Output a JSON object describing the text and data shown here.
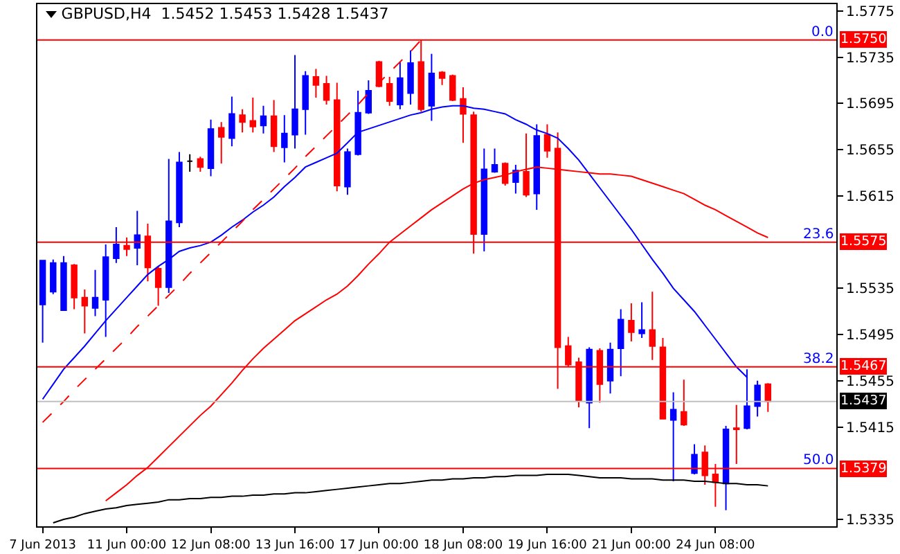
{
  "chart_data": {
    "type": "candlestick",
    "title": "GBPUSD,H4  1.5452 1.5453 1.5428 1.5437",
    "categories": [
      "7 Jun 2013",
      null,
      null,
      null,
      null,
      null,
      null,
      null,
      "11 Jun 00:00",
      null,
      null,
      null,
      null,
      null,
      null,
      null,
      "12 Jun 08:00",
      null,
      null,
      null,
      null,
      null,
      null,
      null,
      "13 Jun 16:00",
      null,
      null,
      null,
      null,
      null,
      null,
      null,
      "17 Jun 00:00",
      null,
      null,
      null,
      null,
      null,
      null,
      null,
      "18 Jun 08:00",
      null,
      null,
      null,
      null,
      null,
      null,
      null,
      "19 Jun 16:00",
      null,
      null,
      null,
      null,
      null,
      null,
      null,
      "21 Jun 00:00",
      null,
      null,
      null,
      null,
      null,
      null,
      null,
      "24 Jun 08:00",
      null,
      null,
      null,
      null,
      null,
      null,
      null,
      null,
      null,
      null,
      null
    ],
    "ohlc": [
      [
        1.5521,
        1.5559,
        1.5488,
        1.5559
      ],
      [
        1.5532,
        1.556,
        1.553,
        1.5557
      ],
      [
        1.5516,
        1.5563,
        1.5516,
        1.5557
      ],
      [
        1.5555,
        1.5556,
        1.5517,
        1.5527
      ],
      [
        1.5527,
        1.5534,
        1.5496,
        1.552
      ],
      [
        1.5518,
        1.5551,
        1.5511,
        1.5527
      ],
      [
        1.5525,
        1.5573,
        1.5493,
        1.5562
      ],
      [
        1.5561,
        1.5588,
        1.5557,
        1.5573
      ],
      [
        1.5572,
        1.5579,
        1.5563,
        1.5569
      ],
      [
        1.557,
        1.5602,
        1.5555,
        1.5581
      ],
      [
        1.558,
        1.5591,
        1.5541,
        1.5553
      ],
      [
        1.5552,
        1.5554,
        1.552,
        1.5536
      ],
      [
        1.5536,
        1.5647,
        1.5531,
        1.5593
      ],
      [
        1.5592,
        1.5653,
        1.5588,
        1.5644
      ],
      [
        1.5645,
        1.5651,
        1.5636,
        1.5645
      ],
      [
        1.5647,
        1.5649,
        1.5636,
        1.564
      ],
      [
        1.5639,
        1.5681,
        1.5632,
        1.5673
      ],
      [
        1.5674,
        1.5679,
        1.5643,
        1.5666
      ],
      [
        1.5665,
        1.5701,
        1.5658,
        1.5686
      ],
      [
        1.5685,
        1.569,
        1.567,
        1.5679
      ],
      [
        1.568,
        1.57,
        1.567,
        1.5675
      ],
      [
        1.5676,
        1.5693,
        1.5669,
        1.5684
      ],
      [
        1.5684,
        1.5698,
        1.5653,
        1.5658
      ],
      [
        1.5657,
        1.5685,
        1.5644,
        1.5669
      ],
      [
        1.5668,
        1.5737,
        1.5656,
        1.569
      ],
      [
        1.569,
        1.5723,
        1.5668,
        1.5719
      ],
      [
        1.5718,
        1.5725,
        1.57,
        1.5711
      ],
      [
        1.5712,
        1.5719,
        1.5694,
        1.5698
      ],
      [
        1.5698,
        1.5713,
        1.5619,
        1.5624
      ],
      [
        1.5623,
        1.5656,
        1.5616,
        1.5653
      ],
      [
        1.5651,
        1.5706,
        1.565,
        1.5687
      ],
      [
        1.5687,
        1.5715,
        1.5686,
        1.5706
      ],
      [
        1.5731,
        1.5732,
        1.5709,
        1.571
      ],
      [
        1.5712,
        1.5718,
        1.5693,
        1.5697
      ],
      [
        1.5694,
        1.5731,
        1.569,
        1.5717
      ],
      [
        1.5704,
        1.5741,
        1.5694,
        1.573
      ],
      [
        1.5731,
        1.575,
        1.5688,
        1.569
      ],
      [
        1.5693,
        1.5738,
        1.568,
        1.5721
      ],
      [
        1.5722,
        1.5723,
        1.5711,
        1.5717
      ],
      [
        1.5719,
        1.572,
        1.5697,
        1.5698
      ],
      [
        1.5699,
        1.5709,
        1.5661,
        1.5686
      ],
      [
        1.5685,
        1.5688,
        1.5565,
        1.5582
      ],
      [
        1.5582,
        1.5656,
        1.5567,
        1.5638
      ],
      [
        1.5636,
        1.5656,
        1.5635,
        1.5642
      ],
      [
        1.5643,
        1.5644,
        1.5624,
        1.5626
      ],
      [
        1.5627,
        1.5642,
        1.5617,
        1.5637
      ],
      [
        1.5636,
        1.5669,
        1.5614,
        1.5616
      ],
      [
        1.5617,
        1.5677,
        1.5603,
        1.5667
      ],
      [
        1.5668,
        1.5677,
        1.5648,
        1.5654
      ],
      [
        1.5656,
        1.567,
        1.5448,
        1.5484
      ],
      [
        1.5485,
        1.5493,
        1.5467,
        1.5469
      ],
      [
        1.5471,
        1.5475,
        1.5432,
        1.5438
      ],
      [
        1.5436,
        1.5484,
        1.5414,
        1.5482
      ],
      [
        1.5481,
        1.5483,
        1.5436,
        1.5452
      ],
      [
        1.5455,
        1.5488,
        1.5444,
        1.5482
      ],
      [
        1.5483,
        1.5517,
        1.5459,
        1.5508
      ],
      [
        1.5507,
        1.5522,
        1.5489,
        1.5497
      ],
      [
        1.5496,
        1.5523,
        1.5492,
        1.5499
      ],
      [
        1.5499,
        1.5532,
        1.5473,
        1.5485
      ],
      [
        1.5484,
        1.5492,
        1.5422,
        1.5422
      ],
      [
        1.5421,
        1.5445,
        1.5368,
        1.543
      ],
      [
        1.5428,
        1.5456,
        1.5416,
        1.5417
      ],
      [
        1.5375,
        1.54,
        1.5374,
        1.5391
      ],
      [
        1.5393,
        1.5399,
        1.5365,
        1.5373
      ],
      [
        1.5374,
        1.5383,
        1.5346,
        1.5367
      ],
      [
        1.5366,
        1.5416,
        1.5343,
        1.5413
      ],
      [
        1.5414,
        1.5434,
        1.5383,
        1.5413
      ],
      [
        1.5414,
        1.5465,
        1.5413,
        1.5433
      ],
      [
        1.5433,
        1.5455,
        1.5424,
        1.5451
      ],
      [
        1.5452,
        1.5453,
        1.5428,
        1.5437
      ],
      null,
      null,
      null,
      null,
      null,
      null
    ],
    "colors": [
      "#0000ff",
      "#0000ff",
      "#0000ff",
      "#ff0000",
      "#ff0000",
      "#0000ff",
      "#0000ff",
      "#0000ff",
      "#ff0000",
      "#0000ff",
      "#ff0000",
      "#ff0000",
      "#0000ff",
      "#0000ff",
      "#000000",
      "#ff0000",
      "#0000ff",
      "#ff0000",
      "#0000ff",
      "#ff0000",
      "#ff0000",
      "#0000ff",
      "#ff0000",
      "#0000ff",
      "#0000ff",
      "#0000ff",
      "#ff0000",
      "#ff0000",
      "#ff0000",
      "#0000ff",
      "#0000ff",
      "#0000ff",
      "#ff0000",
      "#ff0000",
      "#0000ff",
      "#0000ff",
      "#ff0000",
      "#0000ff",
      "#ff0000",
      "#ff0000",
      "#ff0000",
      "#ff0000",
      "#0000ff",
      "#0000ff",
      "#ff0000",
      "#0000ff",
      "#ff0000",
      "#0000ff",
      "#ff0000",
      "#ff0000",
      "#ff0000",
      "#ff0000",
      "#0000ff",
      "#ff0000",
      "#0000ff",
      "#0000ff",
      "#ff0000",
      "#0000ff",
      "#ff0000",
      "#ff0000",
      "#0000ff",
      "#ff0000",
      "#0000ff",
      "#ff0000",
      "#ff0000",
      "#0000ff",
      "#ff0000",
      "#0000ff",
      "#0000ff",
      "#ff0000",
      null,
      null,
      null,
      null,
      null,
      null
    ],
    "series": [
      {
        "type": "line",
        "color": "#0000ff",
        "values": [
          1.5439,
          1.5452,
          1.5465,
          1.5475,
          1.5485,
          1.5496,
          1.5507,
          1.5517,
          1.5527,
          1.5537,
          1.5547,
          1.5554,
          1.556,
          1.5567,
          1.557,
          1.5572,
          1.5575,
          1.5581,
          1.5588,
          1.5594,
          1.5601,
          1.5607,
          1.5614,
          1.5623,
          1.5631,
          1.564,
          1.5644,
          1.5648,
          1.5652,
          1.5661,
          1.567,
          1.5673,
          1.5676,
          1.5679,
          1.5682,
          1.5685,
          1.5687,
          1.569,
          1.5692,
          1.5693,
          1.5693,
          1.5691,
          1.569,
          1.5688,
          1.5686,
          1.5681,
          1.5677,
          1.5672,
          1.5669,
          1.5665,
          1.5656,
          1.5646,
          1.5634,
          1.5622,
          1.561,
          1.5598,
          1.5586,
          1.5573,
          1.556,
          1.5548,
          1.5535,
          1.5525,
          1.5515,
          1.5503,
          1.5491,
          1.5479,
          1.5467,
          1.5458,
          null,
          null,
          null,
          null,
          null,
          null,
          null,
          null
        ]
      },
      {
        "type": "line",
        "color": "#ff0000",
        "values": [
          null,
          null,
          null,
          null,
          null,
          null,
          1.5351,
          1.5358,
          1.5365,
          1.5373,
          1.538,
          1.5389,
          1.5398,
          1.5407,
          1.5416,
          1.5425,
          1.5433,
          1.5443,
          1.5453,
          1.5464,
          1.5474,
          1.5483,
          1.5491,
          1.5499,
          1.5507,
          1.5513,
          1.5519,
          1.5525,
          1.553,
          1.5537,
          1.5546,
          1.5556,
          1.5565,
          1.5575,
          1.5582,
          1.5589,
          1.5596,
          1.5603,
          1.5609,
          1.5615,
          1.5621,
          1.5626,
          1.5629,
          1.5631,
          1.5633,
          1.5636,
          1.5638,
          1.564,
          1.5639,
          1.5638,
          1.5637,
          1.5636,
          1.5635,
          1.5634,
          1.5634,
          1.5633,
          1.5632,
          1.5629,
          1.5626,
          1.5623,
          1.562,
          1.5617,
          1.5612,
          1.5607,
          1.5603,
          1.5598,
          1.5593,
          1.5588,
          1.5583,
          1.5579,
          null,
          null,
          null,
          null,
          null,
          null
        ]
      },
      {
        "type": "line",
        "color": "#000000",
        "values": [
          null,
          1.5332,
          1.5335,
          1.5337,
          1.534,
          1.5342,
          1.5344,
          1.5345,
          1.5347,
          1.5348,
          1.5349,
          1.535,
          1.5352,
          1.5352,
          1.5353,
          1.5353,
          1.5354,
          1.5354,
          1.5355,
          1.5355,
          1.5356,
          1.5356,
          1.5357,
          1.5357,
          1.5358,
          1.5358,
          1.5359,
          1.536,
          1.5361,
          1.5362,
          1.5363,
          1.5364,
          1.5365,
          1.5366,
          1.5366,
          1.5367,
          1.5368,
          1.5369,
          1.5369,
          1.537,
          1.537,
          1.5371,
          1.5371,
          1.5372,
          1.5372,
          1.5373,
          1.5373,
          1.5373,
          1.5374,
          1.5374,
          1.5374,
          1.5373,
          1.5372,
          1.5371,
          1.5371,
          1.5371,
          1.537,
          1.537,
          1.537,
          1.5369,
          1.5369,
          1.5369,
          1.5368,
          1.5368,
          1.5367,
          1.5366,
          1.5366,
          1.5365,
          1.5365,
          1.5364,
          null,
          null,
          null,
          null,
          null,
          null
        ]
      },
      {
        "type": "line",
        "color": "#ff0000",
        "line_style": "dashed",
        "values": [
          1.5419,
          1.5428,
          1.5437,
          1.5447,
          1.5456,
          1.5465,
          1.5474,
          1.5483,
          1.5492,
          1.5502,
          1.5511,
          1.552,
          1.5529,
          1.5538,
          1.5548,
          1.5557,
          1.5566,
          1.5575,
          1.5584,
          1.5593,
          1.5603,
          1.5612,
          1.5621,
          1.563,
          1.5639,
          1.5649,
          1.5658,
          1.5667,
          1.5676,
          1.5685,
          1.5694,
          1.5704,
          1.5713,
          1.5722,
          1.5731,
          1.574,
          1.575,
          null,
          null,
          null,
          null,
          null,
          null,
          null,
          null,
          null,
          null,
          null,
          null,
          null,
          null,
          null,
          null,
          null,
          null,
          null,
          null,
          null,
          null,
          null,
          null,
          null,
          null,
          null,
          null,
          null,
          null,
          null,
          null,
          null,
          null,
          null,
          null,
          null,
          null,
          null
        ]
      }
    ],
    "ref_lines": [
      {
        "axis": "y",
        "value": 1.575,
        "label": "1.5750",
        "color": "#ff0000"
      },
      {
        "axis": "y",
        "value": 1.5575,
        "label": "1.5575",
        "color": "#ff0000"
      },
      {
        "axis": "y",
        "value": 1.5467,
        "label": "1.5467",
        "color": "#ff0000"
      },
      {
        "axis": "y",
        "value": 1.5379,
        "label": "1.5379",
        "color": "#ff0000"
      },
      {
        "axis": "y",
        "value": 1.5437,
        "label": "1.5437",
        "color": "#c0c0c0"
      }
    ],
    "annotations": [
      {
        "text": "0.0",
        "y": 1.575
      },
      {
        "text": "23.6",
        "y": 1.5575
      },
      {
        "text": "38.2",
        "y": 1.5467
      },
      {
        "text": "50.0",
        "y": 1.5379
      }
    ],
    "ylim": [
      1.5329,
      1.5781
    ],
    "yticks": [
      1.5775,
      1.5735,
      1.5695,
      1.5655,
      1.5615,
      1.5535,
      1.5495,
      1.5455,
      1.5415,
      1.5335
    ],
    "grid": false
  }
}
